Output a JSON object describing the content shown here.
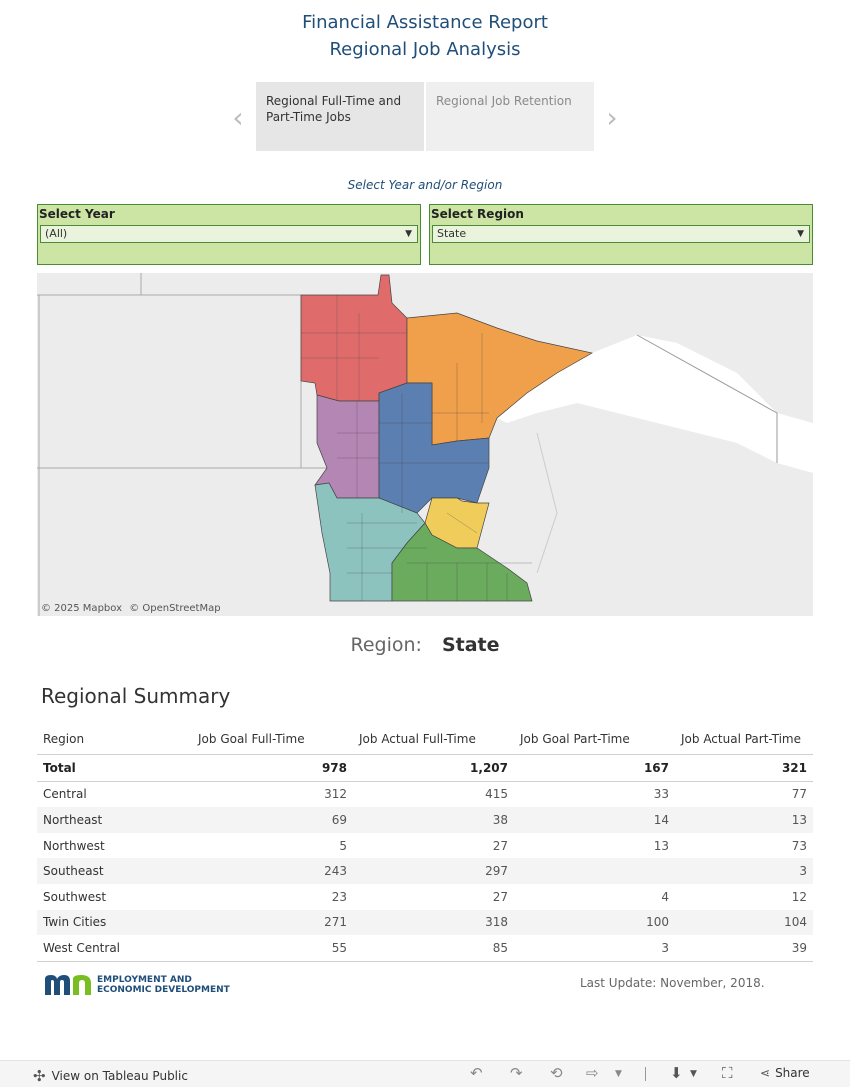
{
  "header": {
    "title_line1": "Financial Assistance Report",
    "title_line2": "Regional Job Analysis"
  },
  "story_tabs": [
    {
      "label": "Regional Full-Time and Part-Time Jobs",
      "active": true
    },
    {
      "label": "Regional Job Retention",
      "active": false
    }
  ],
  "filters": {
    "caption": "Select Year and/or Region",
    "year": {
      "label": "Select Year",
      "value": "(All)"
    },
    "region": {
      "label": "Select Region",
      "value": "State"
    }
  },
  "map": {
    "attribution_mapbox": "© 2025 Mapbox",
    "attribution_osm": "© OpenStreetMap",
    "region_colors": {
      "Northwest": "#e06b6b",
      "Northeast": "#f0a04b",
      "Central": "#5b7fb0",
      "West Central": "#b486b3",
      "Twin Cities": "#f0cd5a",
      "Southwest": "#8cc3bf",
      "Southeast": "#6bab5e"
    }
  },
  "selection": {
    "label": "Region:",
    "value": "State"
  },
  "summary": {
    "title": "Regional Summary",
    "columns": [
      "Region",
      "Job Goal Full-Time",
      "Job Actual Full-Time",
      "Job Goal Part-Time",
      "Job Actual Part-Time"
    ],
    "rows": [
      {
        "region": "Total",
        "goal_ft": "978",
        "actual_ft": "1,207",
        "goal_pt": "167",
        "actual_pt": "321"
      },
      {
        "region": "Central",
        "goal_ft": "312",
        "actual_ft": "415",
        "goal_pt": "33",
        "actual_pt": "77"
      },
      {
        "region": "Northeast",
        "goal_ft": "69",
        "actual_ft": "38",
        "goal_pt": "14",
        "actual_pt": "13"
      },
      {
        "region": "Northwest",
        "goal_ft": "5",
        "actual_ft": "27",
        "goal_pt": "13",
        "actual_pt": "73"
      },
      {
        "region": "Southeast",
        "goal_ft": "243",
        "actual_ft": "297",
        "goal_pt": "",
        "actual_pt": "3"
      },
      {
        "region": "Southwest",
        "goal_ft": "23",
        "actual_ft": "27",
        "goal_pt": "4",
        "actual_pt": "12"
      },
      {
        "region": "Twin Cities",
        "goal_ft": "271",
        "actual_ft": "318",
        "goal_pt": "100",
        "actual_pt": "104"
      },
      {
        "region": "West Central",
        "goal_ft": "55",
        "actual_ft": "85",
        "goal_pt": "3",
        "actual_pt": "39"
      }
    ]
  },
  "branding": {
    "logo_line1": "EMPLOYMENT AND",
    "logo_line2": "ECONOMIC DEVELOPMENT",
    "last_update": "Last Update: November, 2018."
  },
  "footer": {
    "view_label": "View on Tableau Public",
    "share_label": "Share"
  }
}
